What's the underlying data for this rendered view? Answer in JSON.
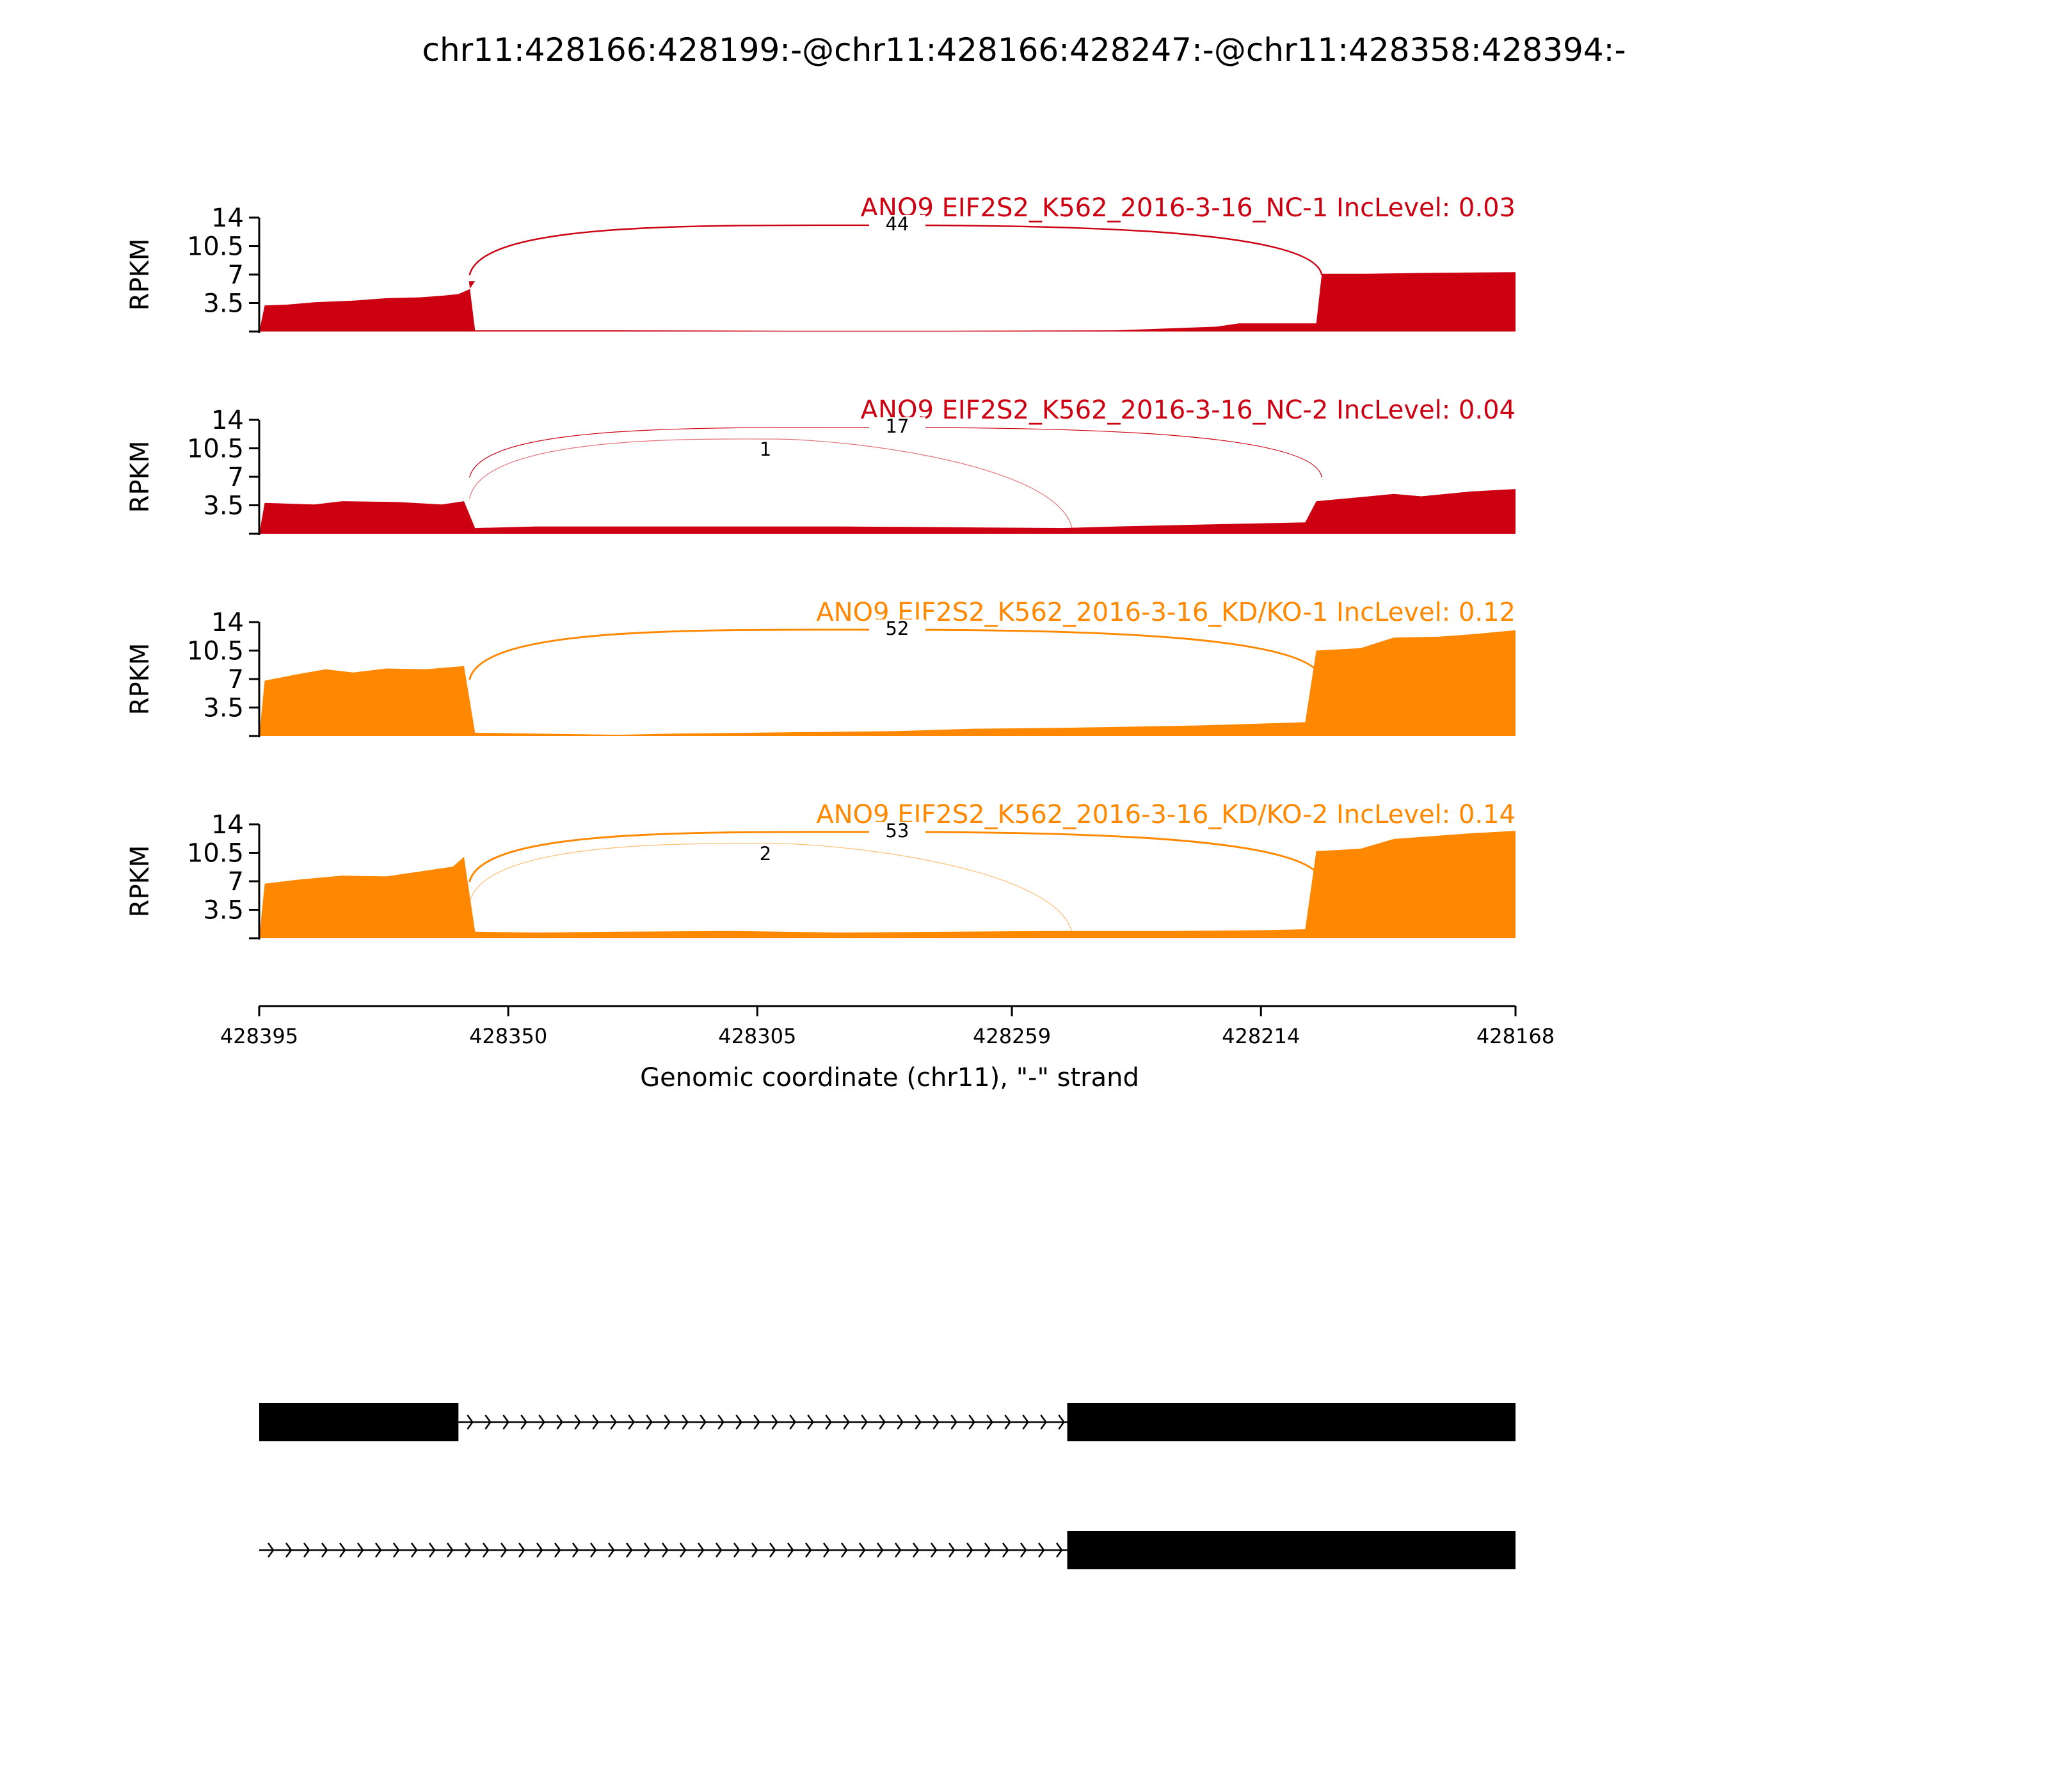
{
  "chart_data": {
    "type": "area",
    "title": "chr11:428166:428199:-@chr11:428166:428247:-@chr11:428358:428394:-",
    "ylabel": "RPKM",
    "xlabel": "Genomic coordinate (chr11), \"-\" strand",
    "x_range": [
      428395,
      428168
    ],
    "x_ticks": [
      "428395",
      "428350",
      "428305",
      "428259",
      "428214",
      "428168"
    ],
    "y_ticks": [
      "14",
      "10.5",
      "7",
      "3.5"
    ],
    "ylim": [
      0,
      14
    ],
    "grid": false,
    "colors": {
      "nc": "#cc0011",
      "kd": "#ff8800",
      "gene": "#000000"
    },
    "tracks": [
      {
        "label": "ANO9 EIF2S2_K562_2016-3-16_NC-1 IncLevel: 0.03",
        "color": "#cc0011",
        "coverage": [
          [
            428395,
            0
          ],
          [
            428394,
            3.2
          ],
          [
            428390,
            3.3
          ],
          [
            428385,
            3.6
          ],
          [
            428378,
            3.8
          ],
          [
            428372,
            4.1
          ],
          [
            428366,
            4.2
          ],
          [
            428362,
            4.4
          ],
          [
            428359,
            4.6
          ],
          [
            428357,
            5.2
          ],
          [
            428356,
            6.2
          ],
          [
            428357.1,
            6.2
          ],
          [
            428356,
            0.15
          ],
          [
            428330,
            0.15
          ],
          [
            428300,
            0.1
          ],
          [
            428270,
            0.1
          ],
          [
            428240,
            0.15
          ],
          [
            428222,
            0.6
          ],
          [
            428218,
            1
          ],
          [
            428204,
            1
          ],
          [
            428203,
            7.1
          ],
          [
            428195,
            7.1
          ],
          [
            428185,
            7.2
          ],
          [
            428168,
            7.3
          ],
          [
            428168,
            0
          ]
        ],
        "junctions": [
          {
            "start": 428357,
            "end": 428203,
            "count": 44,
            "label": "44"
          }
        ]
      },
      {
        "label": "ANO9 EIF2S2_K562_2016-3-16_NC-2 IncLevel: 0.04",
        "color": "#cc0011",
        "coverage": [
          [
            428395,
            0
          ],
          [
            428394,
            3.8
          ],
          [
            428385,
            3.6
          ],
          [
            428380,
            4.0
          ],
          [
            428370,
            3.9
          ],
          [
            428362,
            3.6
          ],
          [
            428358,
            4.0
          ],
          [
            428356,
            0.7
          ],
          [
            428345,
            0.9
          ],
          [
            428320,
            0.9
          ],
          [
            428290,
            0.9
          ],
          [
            428270,
            0.8
          ],
          [
            428250,
            0.7
          ],
          [
            428240,
            0.9
          ],
          [
            428220,
            1.2
          ],
          [
            428206,
            1.4
          ],
          [
            428204,
            4.0
          ],
          [
            428196,
            4.5
          ],
          [
            428190,
            4.9
          ],
          [
            428185,
            4.6
          ],
          [
            428176,
            5.2
          ],
          [
            428168,
            5.5
          ],
          [
            428168,
            0
          ]
        ],
        "junctions": [
          {
            "start": 428357,
            "end": 428203,
            "count": 17,
            "label": "17"
          },
          {
            "start": 428357,
            "end": 428248,
            "count": 1,
            "label": "1"
          }
        ]
      },
      {
        "label": "ANO9 EIF2S2_K562_2016-3-16_KD/KO-1 IncLevel: 0.12",
        "color": "#ff8800",
        "coverage": [
          [
            428395,
            0
          ],
          [
            428394,
            6.8
          ],
          [
            428388,
            7.6
          ],
          [
            428383,
            8.2
          ],
          [
            428378,
            7.8
          ],
          [
            428372,
            8.3
          ],
          [
            428365,
            8.2
          ],
          [
            428358,
            8.6
          ],
          [
            428356,
            0.4
          ],
          [
            428345,
            0.3
          ],
          [
            428330,
            0.15
          ],
          [
            428320,
            0.3
          ],
          [
            428300,
            0.45
          ],
          [
            428280,
            0.6
          ],
          [
            428266,
            0.9
          ],
          [
            428250,
            1.0
          ],
          [
            428225,
            1.3
          ],
          [
            428206,
            1.7
          ],
          [
            428204,
            10.5
          ],
          [
            428196,
            10.8
          ],
          [
            428190,
            12.1
          ],
          [
            428182,
            12.2
          ],
          [
            428176,
            12.5
          ],
          [
            428168,
            13.0
          ],
          [
            428168,
            0
          ]
        ],
        "junctions": [
          {
            "start": 428357,
            "end": 428203,
            "count": 52,
            "label": "52"
          }
        ]
      },
      {
        "label": "ANO9 EIF2S2_K562_2016-3-16_KD/KO-2 IncLevel: 0.14",
        "color": "#ff8800",
        "coverage": [
          [
            428395,
            0
          ],
          [
            428394,
            6.7
          ],
          [
            428388,
            7.2
          ],
          [
            428380,
            7.7
          ],
          [
            428372,
            7.6
          ],
          [
            428366,
            8.2
          ],
          [
            428360,
            8.8
          ],
          [
            428358,
            10.0
          ],
          [
            428356,
            0.8
          ],
          [
            428345,
            0.7
          ],
          [
            428330,
            0.8
          ],
          [
            428310,
            0.9
          ],
          [
            428290,
            0.7
          ],
          [
            428270,
            0.8
          ],
          [
            428250,
            0.9
          ],
          [
            428230,
            0.9
          ],
          [
            428212,
            1.0
          ],
          [
            428206,
            1.1
          ],
          [
            428204,
            10.7
          ],
          [
            428196,
            11.0
          ],
          [
            428190,
            12.2
          ],
          [
            428182,
            12.6
          ],
          [
            428176,
            12.9
          ],
          [
            428168,
            13.2
          ],
          [
            428168,
            0
          ]
        ],
        "junctions": [
          {
            "start": 428357,
            "end": 428203,
            "count": 53,
            "label": "53"
          },
          {
            "start": 428357,
            "end": 428248,
            "count": 2,
            "label": "2"
          }
        ]
      }
    ],
    "gene_models": [
      {
        "exons": [
          [
            428395,
            428359
          ],
          [
            428249,
            428168
          ]
        ],
        "intron": [
          428359,
          428249
        ]
      },
      {
        "exons": [
          [
            428249,
            428168
          ]
        ],
        "intron": [
          428395,
          428249
        ]
      }
    ]
  }
}
